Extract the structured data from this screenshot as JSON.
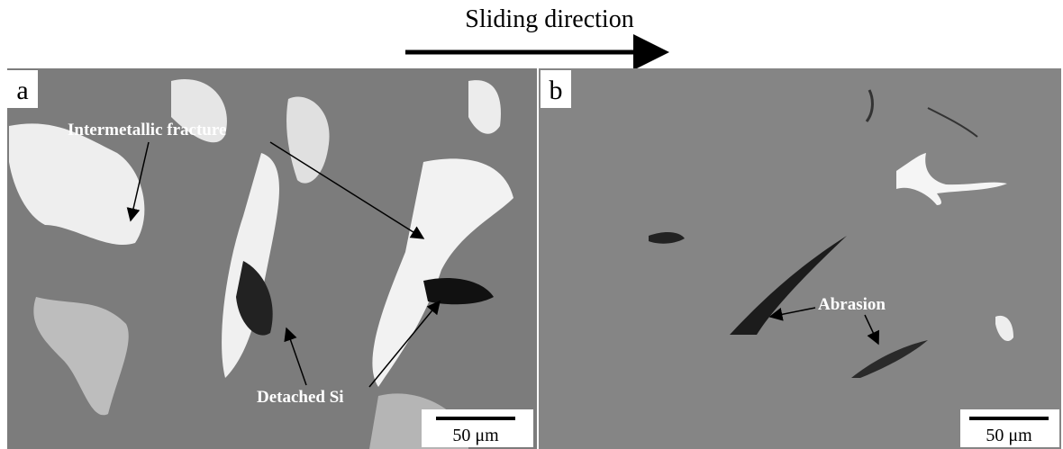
{
  "header": {
    "title": "Sliding direction"
  },
  "panels": [
    {
      "label": "a",
      "annotations": [
        "Intermetallic fracture",
        "Detached Si"
      ],
      "scale_bar": "50 μm"
    },
    {
      "label": "b",
      "annotations": [
        "Abrasion"
      ],
      "scale_bar": "50 μm"
    }
  ]
}
